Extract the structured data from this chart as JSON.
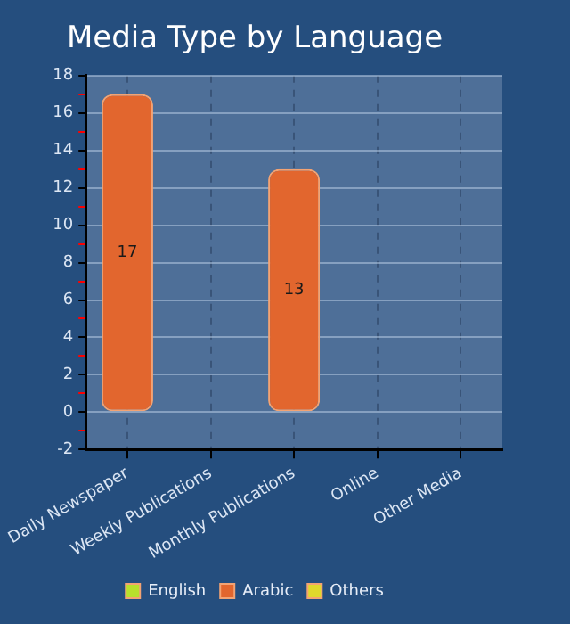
{
  "chart_data": {
    "type": "bar",
    "title": "Media Type by Language",
    "categories": [
      "Daily Newspaper",
      "Weekly Publications",
      "Monthly Publications",
      "Online",
      "Other Media"
    ],
    "series": [
      {
        "name": "English",
        "color": "#b8e02c",
        "values": [
          null,
          null,
          null,
          null,
          null
        ]
      },
      {
        "name": "Arabic",
        "color": "#e2662e",
        "values": [
          17,
          null,
          13,
          null,
          null
        ]
      },
      {
        "name": "Others",
        "color": "#e0d82c",
        "values": [
          null,
          null,
          null,
          null,
          null
        ]
      }
    ],
    "ylim": [
      -2,
      18
    ],
    "yticks": [
      -2,
      {
        "value": -1,
        "label": null
      },
      0,
      {
        "value": 1,
        "label": null
      },
      2,
      {
        "value": 3,
        "label": null
      },
      4,
      {
        "value": 5,
        "label": null
      },
      6,
      {
        "value": 7,
        "label": null
      },
      8,
      {
        "value": 9,
        "label": null
      },
      10,
      {
        "value": 11,
        "label": null
      },
      12,
      {
        "value": 13,
        "label": null
      },
      14,
      {
        "value": 15,
        "label": null
      },
      16,
      {
        "value": 17,
        "label": null
      },
      18
    ],
    "grid": true,
    "legend": "bottom",
    "data_labels": true
  }
}
